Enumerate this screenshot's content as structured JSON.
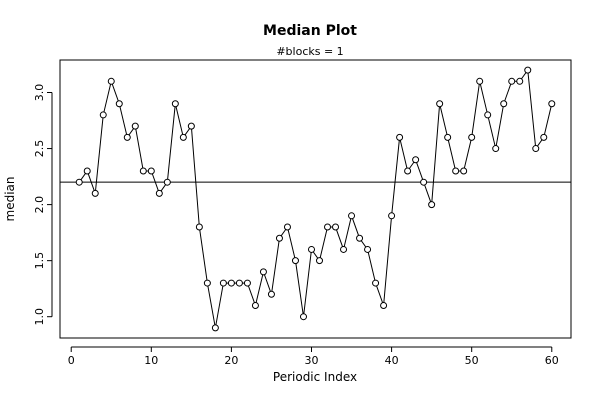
{
  "chart_data": {
    "type": "line",
    "title": "Median Plot",
    "subtitle": "#blocks =  1",
    "xlabel": "Periodic Index",
    "ylabel": "median",
    "xlim": [
      -1.4,
      62.4
    ],
    "ylim": [
      0.81,
      3.29
    ],
    "x_ticks": [
      0,
      10,
      20,
      30,
      40,
      50,
      60
    ],
    "y_ticks": [
      1.0,
      1.5,
      2.0,
      2.5,
      3.0
    ],
    "y_tick_labels": [
      "1.0",
      "1.5",
      "2.0",
      "2.5",
      "3.0"
    ],
    "hline": 2.2,
    "grid": false,
    "series": [
      {
        "x": [
          1,
          2,
          3,
          4,
          5,
          6,
          7,
          8,
          9,
          10,
          11,
          12,
          13,
          14,
          15,
          16,
          17,
          18,
          19,
          20,
          21,
          22,
          23,
          24,
          25,
          26,
          27,
          28,
          29,
          30,
          31,
          32,
          33,
          34,
          35,
          36,
          37,
          38,
          39,
          40,
          41,
          42,
          43,
          44,
          45,
          46,
          47,
          48,
          49,
          50,
          51,
          52,
          53,
          54,
          55,
          56,
          57,
          58,
          59,
          60
        ],
        "values": [
          2.2,
          2.3,
          2.1,
          2.8,
          3.1,
          2.9,
          2.6,
          2.7,
          2.3,
          2.3,
          2.1,
          2.2,
          2.9,
          2.6,
          2.7,
          1.8,
          1.3,
          0.9,
          1.3,
          1.3,
          1.3,
          1.3,
          1.1,
          1.4,
          1.2,
          1.7,
          1.8,
          1.5,
          1.0,
          1.6,
          1.5,
          1.8,
          1.8,
          1.6,
          1.9,
          1.7,
          1.6,
          1.3,
          1.1,
          1.9,
          2.6,
          2.3,
          2.4,
          2.2,
          2.0,
          2.9,
          2.6,
          2.3,
          2.3,
          2.6,
          3.1,
          2.8,
          2.5,
          2.9,
          3.1,
          3.1,
          3.2,
          2.5,
          2.6,
          2.9
        ]
      }
    ]
  }
}
